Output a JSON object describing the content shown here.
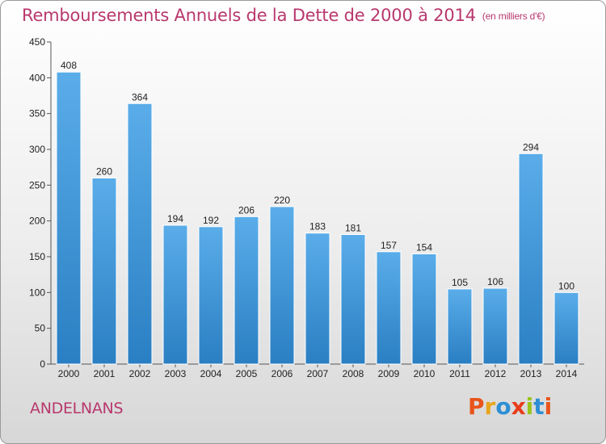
{
  "title": "Remboursements Annuels de la Dette de 2000 à 2014",
  "unit_note": "(en milliers d'€)",
  "location": "ANDELNANS",
  "brand": {
    "text": "Proxiti",
    "letter_colors": [
      "#e8541c",
      "#e8a51c",
      "#2d8fd5",
      "#e83d1c",
      "#9bc31c",
      "#2d8fd5",
      "#e8541c"
    ]
  },
  "colors": {
    "bar_top": "#5aade9",
    "bar_bottom": "#2a7fc3",
    "title": "#b8386d",
    "grid": "#bfbfbf"
  },
  "chart_data": {
    "type": "bar",
    "title": "Remboursements Annuels de la Dette de 2000 à 2014",
    "categories": [
      "2000",
      "2001",
      "2002",
      "2003",
      "2004",
      "2005",
      "2006",
      "2007",
      "2008",
      "2009",
      "2010",
      "2011",
      "2012",
      "2013",
      "2014"
    ],
    "values": [
      408,
      260,
      364,
      194,
      192,
      206,
      220,
      183,
      181,
      157,
      154,
      105,
      106,
      294,
      100
    ],
    "ylim": [
      0,
      450
    ],
    "yticks": [
      0,
      50,
      100,
      150,
      200,
      250,
      300,
      350,
      400,
      450
    ],
    "grid": false
  }
}
